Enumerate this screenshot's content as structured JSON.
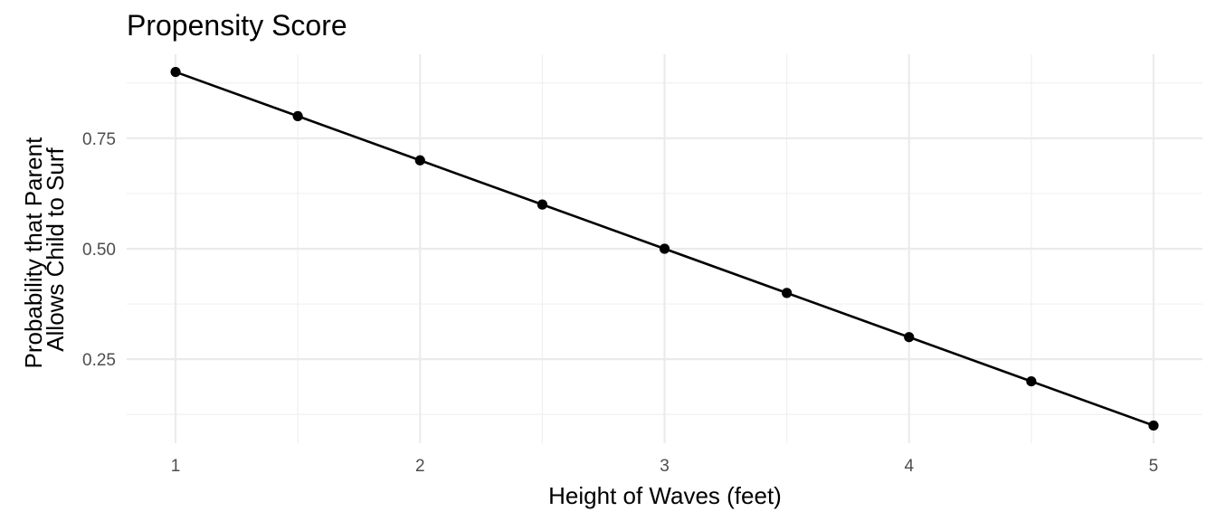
{
  "chart_data": {
    "type": "line",
    "title": "Propensity Score",
    "xlabel": "Height of Waves (feet)",
    "ylabel_lines": [
      "Probability that Parent",
      "Allows Child to Surf"
    ],
    "x": [
      1,
      1.5,
      2,
      2.5,
      3,
      3.5,
      4,
      4.5,
      5
    ],
    "y": [
      0.9,
      0.8,
      0.7,
      0.6,
      0.5,
      0.4,
      0.3,
      0.2,
      0.1
    ],
    "xlim": [
      0.8,
      5.2
    ],
    "ylim": [
      0.06,
      0.94
    ],
    "x_ticks": [
      1,
      2,
      3,
      4,
      5
    ],
    "x_tick_labels": [
      "1",
      "2",
      "3",
      "4",
      "5"
    ],
    "x_minor_ticks": [
      1.5,
      2.5,
      3.5,
      4.5
    ],
    "y_ticks": [
      0.25,
      0.5,
      0.75
    ],
    "y_tick_labels": [
      "0.25",
      "0.50",
      "0.75"
    ],
    "y_minor_ticks": [
      0.125,
      0.375,
      0.625,
      0.875
    ],
    "grid": true,
    "series_color": "#000000",
    "grid_color": "#ebebeb",
    "background": "#ffffff"
  }
}
